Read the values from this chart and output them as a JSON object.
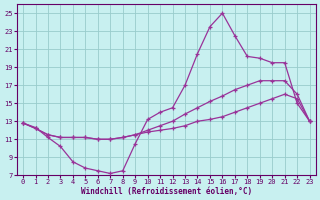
{
  "xlabel": "Windchill (Refroidissement éolien,°C)",
  "background_color": "#c8f0f0",
  "grid_color": "#99cccc",
  "line_color": "#993399",
  "xlim": [
    -0.5,
    23.5
  ],
  "ylim": [
    7,
    26
  ],
  "xticks": [
    0,
    1,
    2,
    3,
    4,
    5,
    6,
    7,
    8,
    9,
    10,
    11,
    12,
    13,
    14,
    15,
    16,
    17,
    18,
    19,
    20,
    21,
    22,
    23
  ],
  "yticks": [
    7,
    9,
    11,
    13,
    15,
    17,
    19,
    21,
    23,
    25
  ],
  "series": [
    {
      "x": [
        0,
        1,
        2,
        3,
        4,
        5,
        6,
        7,
        8,
        9,
        10,
        11,
        12,
        13,
        14,
        15,
        16,
        17,
        18,
        19,
        20,
        21,
        22,
        23
      ],
      "y": [
        12.8,
        12.3,
        11.2,
        10.2,
        8.5,
        7.8,
        7.5,
        7.2,
        7.5,
        10.5,
        13.2,
        14.0,
        14.5,
        17.0,
        20.5,
        23.5,
        25.0,
        22.5,
        20.2,
        20.0,
        19.5,
        19.5,
        15.0,
        13.0
      ]
    },
    {
      "x": [
        0,
        1,
        2,
        3,
        4,
        5,
        6,
        7,
        8,
        9,
        10,
        11,
        12,
        13,
        14,
        15,
        16,
        17,
        18,
        19,
        20,
        21,
        22,
        23
      ],
      "y": [
        12.8,
        12.2,
        11.5,
        11.2,
        11.2,
        11.2,
        11.0,
        11.0,
        11.2,
        11.5,
        12.0,
        12.5,
        13.0,
        13.8,
        14.5,
        15.2,
        15.8,
        16.5,
        17.0,
        17.5,
        17.5,
        17.5,
        16.0,
        13.0
      ]
    },
    {
      "x": [
        0,
        1,
        2,
        3,
        4,
        5,
        6,
        7,
        8,
        9,
        10,
        11,
        12,
        13,
        14,
        15,
        16,
        17,
        18,
        19,
        20,
        21,
        22,
        23
      ],
      "y": [
        12.8,
        12.2,
        11.5,
        11.2,
        11.2,
        11.2,
        11.0,
        11.0,
        11.2,
        11.5,
        11.8,
        12.0,
        12.2,
        12.5,
        13.0,
        13.2,
        13.5,
        14.0,
        14.5,
        15.0,
        15.5,
        16.0,
        15.5,
        13.0
      ]
    }
  ]
}
